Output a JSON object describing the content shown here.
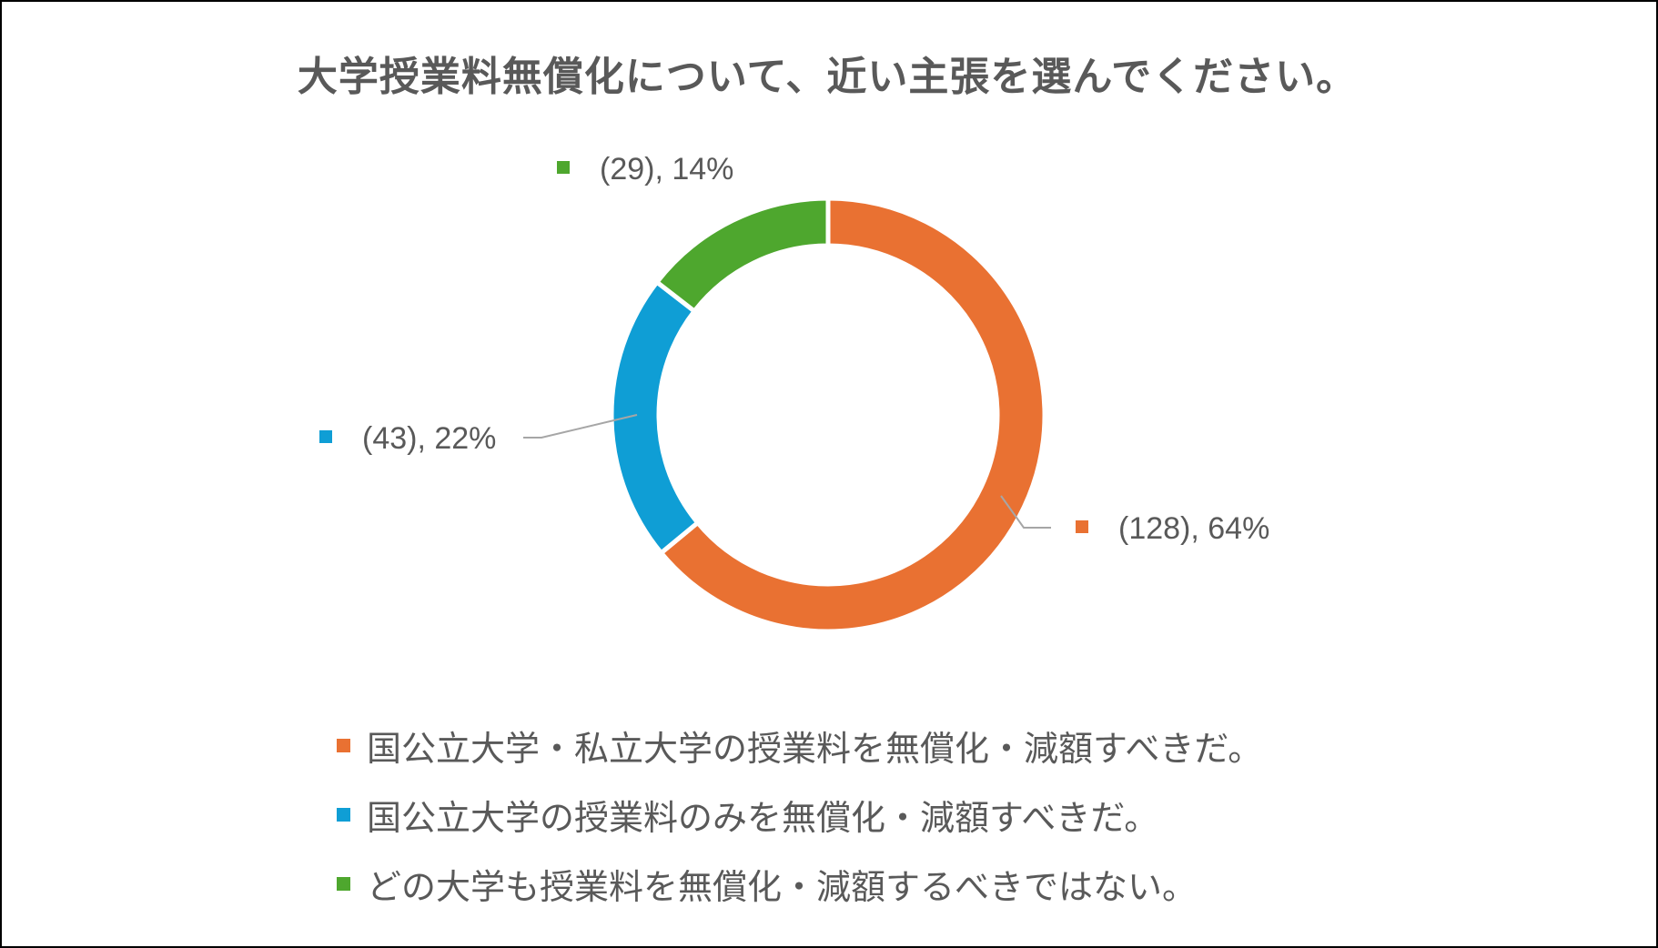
{
  "chart_data": {
    "type": "donut",
    "title": "大学授業料無償化について、近い主張を選んでください。",
    "series": [
      {
        "name": "国公立大学・私立大学の授業料を無償化・減額すべきだ。",
        "count": 128,
        "percent": 64,
        "label": "(128), 64%",
        "color": "#E97132"
      },
      {
        "name": "国公立大学の授業料のみを無償化・減額すべきだ。",
        "count": 43,
        "percent": 22,
        "label": "(43), 22%",
        "color": "#0F9ED5"
      },
      {
        "name": "どの大学も授業料を無償化・減額するべきではない。",
        "count": 29,
        "percent": 14,
        "label": "(29), 14%",
        "color": "#4EA72E"
      }
    ],
    "legend_position": "bottom"
  },
  "colors": {
    "text": "#595959",
    "leader_line": "#A6A6A6",
    "border": "#000000"
  }
}
